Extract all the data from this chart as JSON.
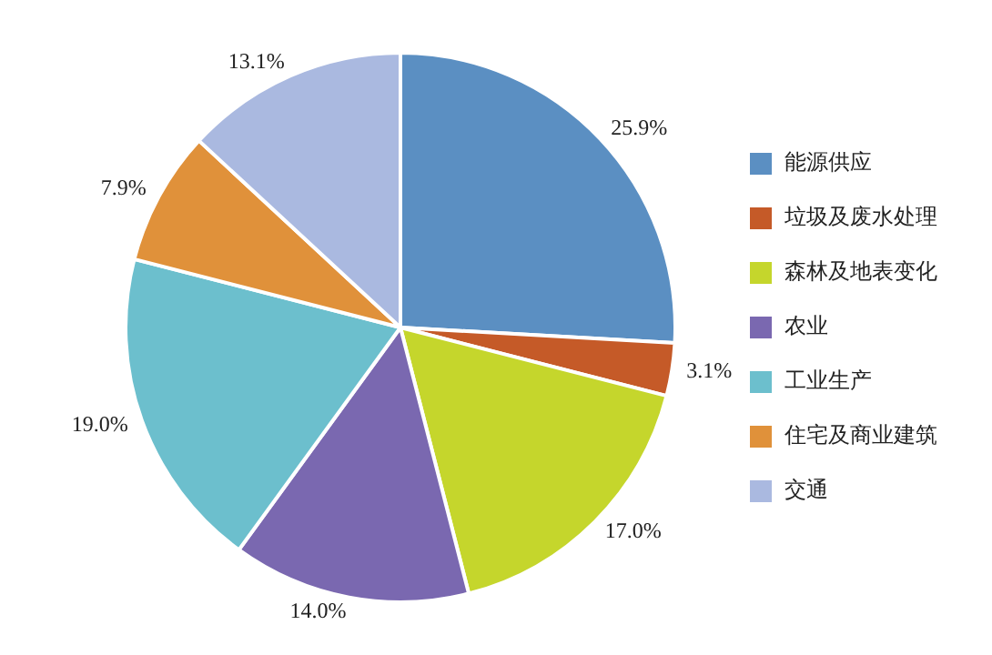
{
  "chart_data": {
    "type": "pie",
    "categories": [
      "能源供应",
      "垃圾及废水处理",
      "森林及地表变化",
      "农业",
      "工业生产",
      "住宅及商业建筑",
      "交通"
    ],
    "values": [
      25.9,
      3.1,
      17.0,
      14.0,
      19.0,
      7.9,
      13.1
    ],
    "value_labels": [
      "25.9%",
      "3.1%",
      "17.0%",
      "14.0%",
      "19.0%",
      "7.9%",
      "13.1%"
    ],
    "colors": [
      "#5b8fc2",
      "#c55a28",
      "#c5d62c",
      "#7a68b0",
      "#6cbfcd",
      "#e0913a",
      "#aab9e0"
    ],
    "legend": "right"
  }
}
